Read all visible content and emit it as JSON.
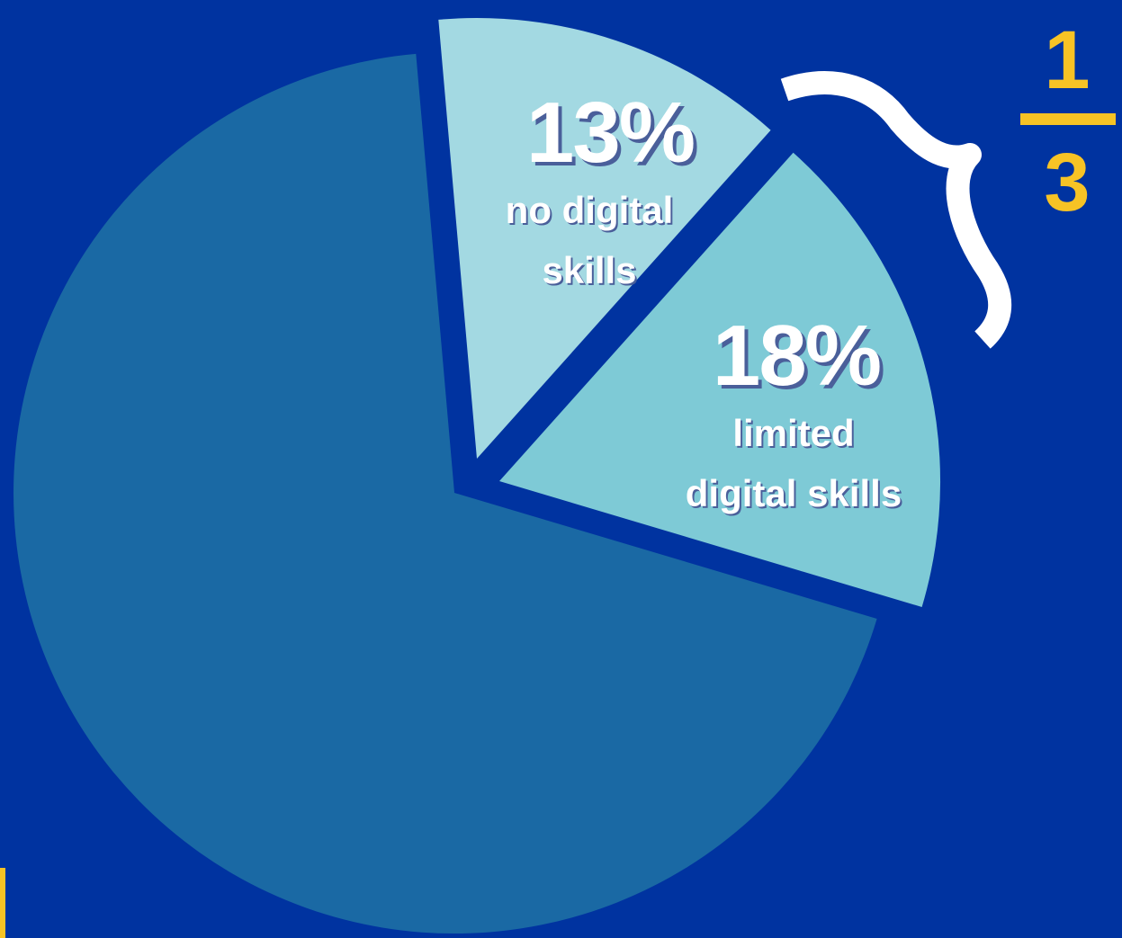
{
  "colors": {
    "background": "#0033a0",
    "rest_slice": "#1a69a4",
    "no_digital_slice": "#a3d9e2",
    "limited_digital_slice": "#7ecad6",
    "bracket": "#ffffff",
    "fraction": "#f7c325"
  },
  "chart_data": {
    "type": "pie",
    "slices": [
      {
        "key": "no_digital",
        "value": 13,
        "percent_label": "13%",
        "label_lines": [
          "no digital",
          "skills"
        ],
        "color": "#a3d9e2"
      },
      {
        "key": "limited_digital",
        "value": 18,
        "percent_label": "18%",
        "label_lines": [
          "limited",
          "digital skills"
        ],
        "color": "#7ecad6"
      },
      {
        "key": "rest",
        "value": 69,
        "percent_label": "",
        "label_lines": [],
        "color": "#1a69a4"
      }
    ],
    "annotation": {
      "bracket_icon": "curly-brace-icon",
      "fraction_numerator": "1",
      "fraction_denominator": "3"
    }
  }
}
